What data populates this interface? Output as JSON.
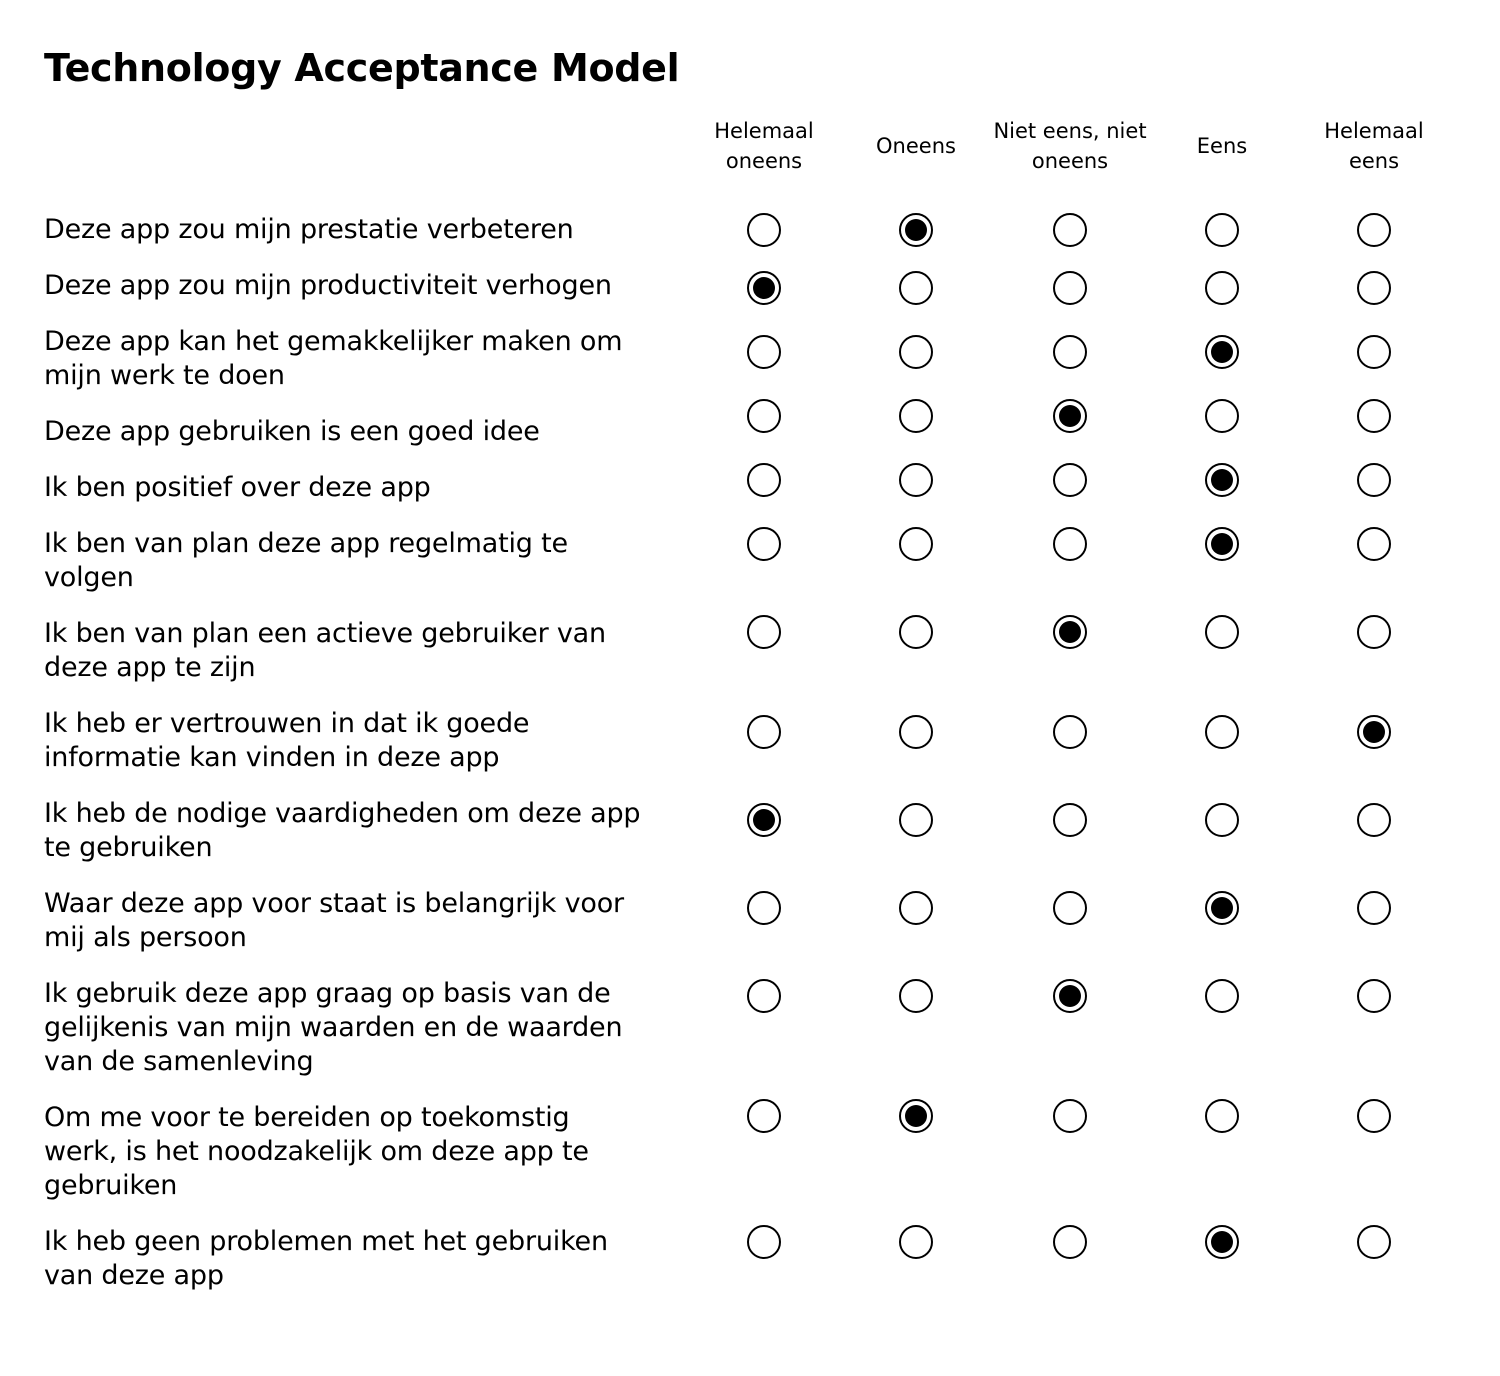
{
  "title": "Technology Acceptance Model",
  "scale": {
    "options": [
      "Helemaal\noneens",
      "Oneens",
      "Niet eens, niet\noneens",
      "Eens",
      "Helemaal\neens"
    ]
  },
  "questions": [
    {
      "text": "Deze app zou mijn prestatie verbeteren",
      "selected": "Oneens"
    },
    {
      "text": "Deze app zou mijn productiviteit verhogen",
      "selected": "Helemaal oneens"
    },
    {
      "text": "Deze app kan het gemakkelijker maken om mijn werk te doen",
      "selected": "Eens"
    },
    {
      "text": "Deze app gebruiken is een goed idee",
      "selected": "Niet eens, niet oneens"
    },
    {
      "text": "Ik ben positief over deze app",
      "selected": "Eens"
    },
    {
      "text": "Ik ben van plan deze app regelmatig te volgen",
      "selected": "Eens"
    },
    {
      "text": "Ik ben van plan een actieve gebruiker van deze app te zijn",
      "selected": "Niet eens, niet oneens"
    },
    {
      "text": "Ik heb er vertrouwen in dat ik goede informatie kan vinden in deze app",
      "selected": "Helemaal eens"
    },
    {
      "text": "Ik heb de nodige vaardigheden om deze app te gebruiken",
      "selected": "Helemaal oneens"
    },
    {
      "text": "Waar deze app voor staat is belangrijk voor mij als persoon",
      "selected": "Eens"
    },
    {
      "text": "Ik gebruik deze app graag op basis van de gelijkenis van mijn waarden en de waarden van de samenleving",
      "selected": "Niet eens, niet oneens"
    },
    {
      "text": "Om me voor te bereiden op toekomstig werk, is het noodzakelijk om deze app te gebruiken",
      "selected": "Oneens"
    },
    {
      "text": "Ik heb geen problemen met het  gebruiken van deze app",
      "selected": "Eens"
    }
  ]
}
